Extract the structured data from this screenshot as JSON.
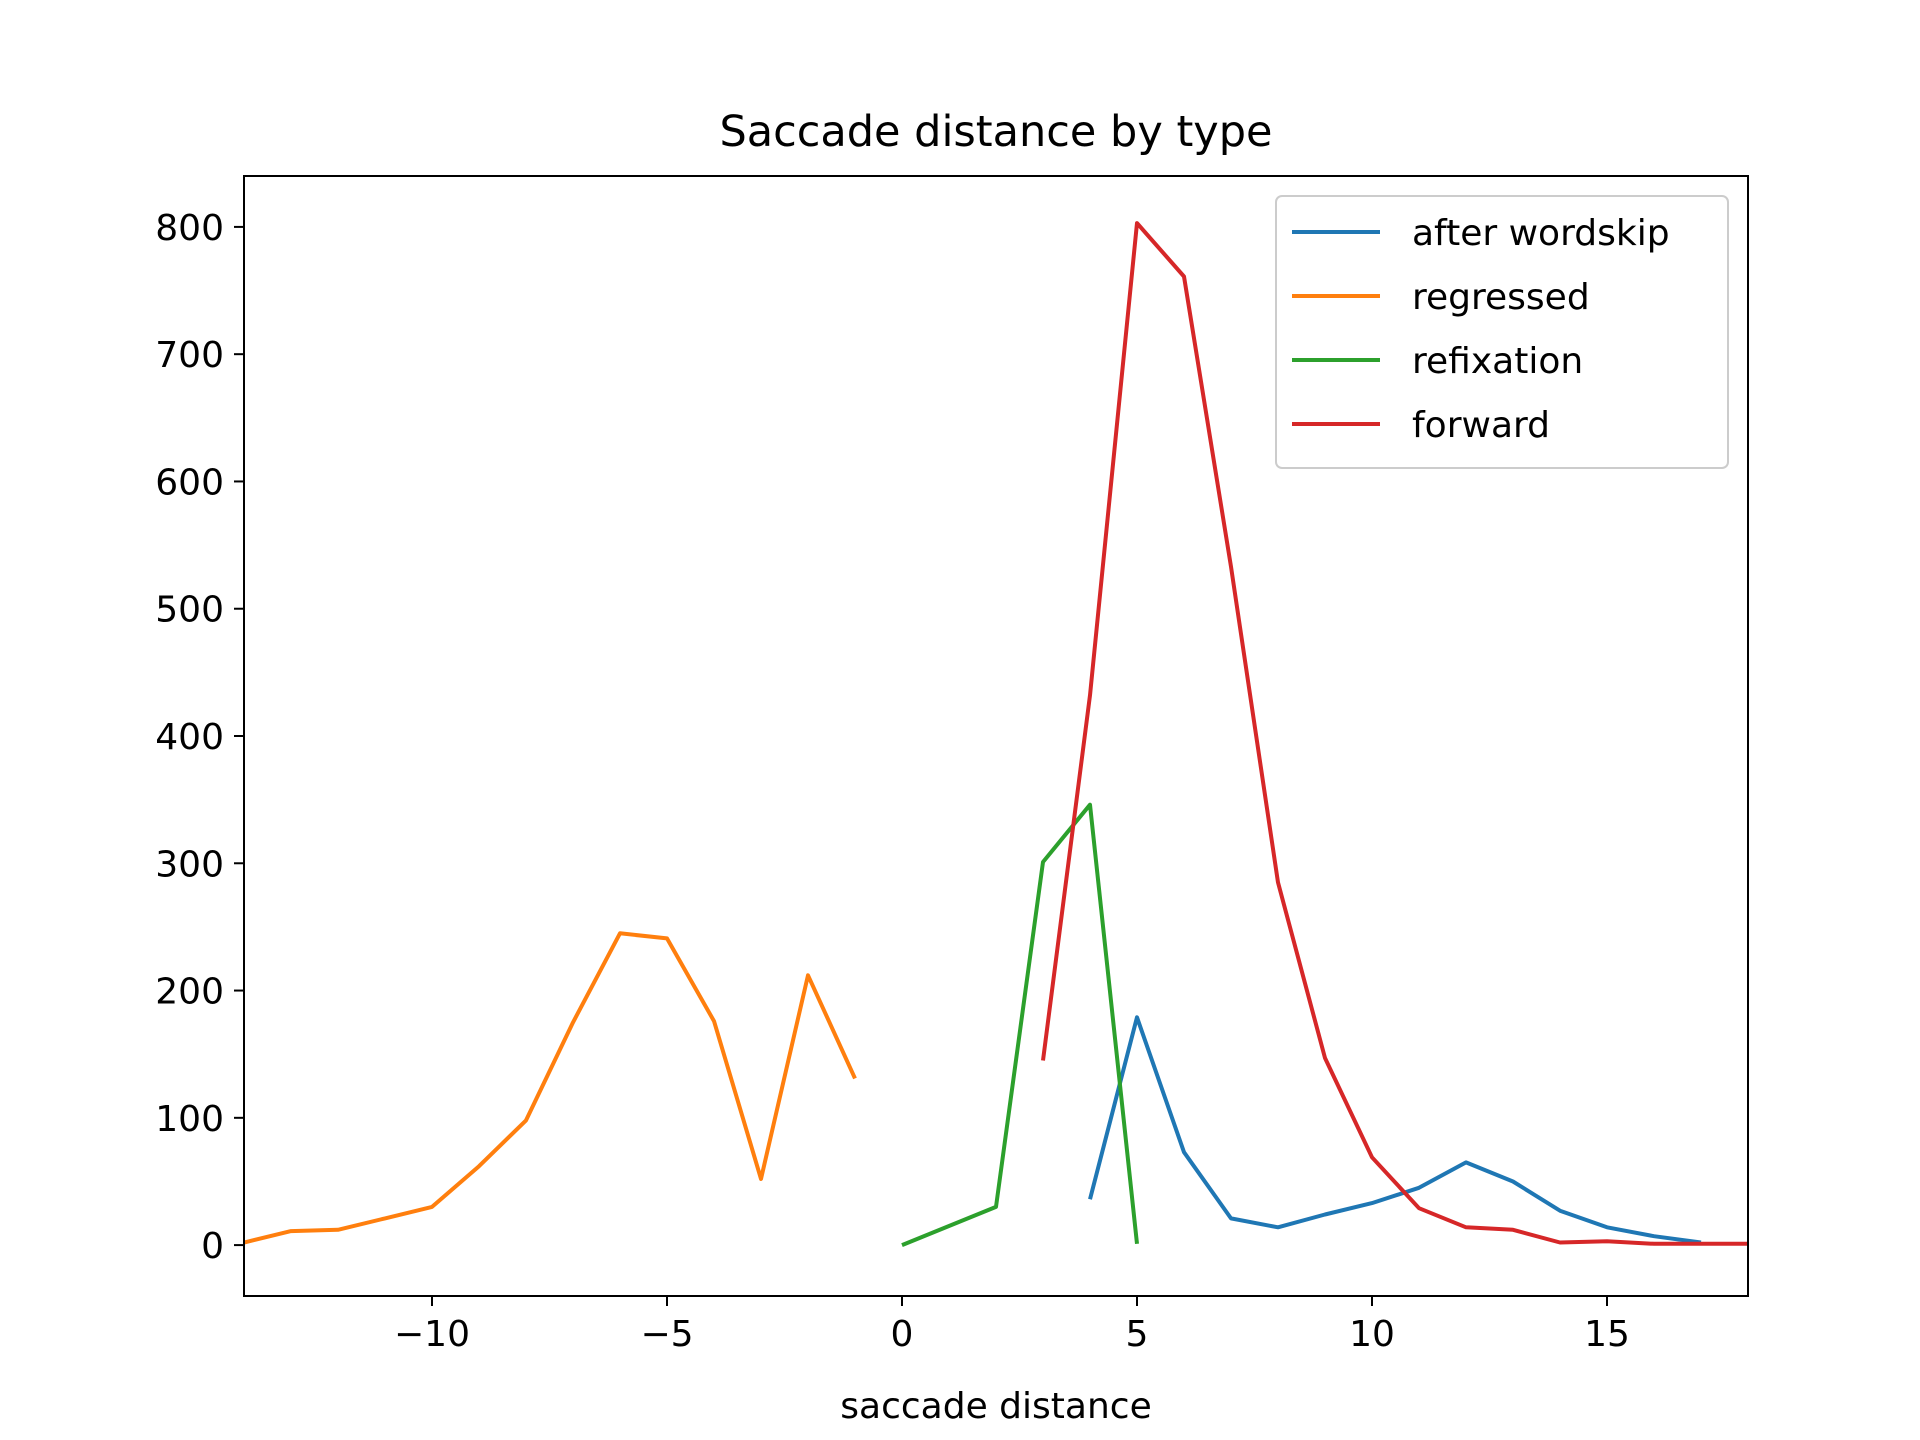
{
  "chart_data": {
    "type": "line",
    "title": "Saccade distance by type",
    "xlabel": "saccade distance",
    "ylabel": "",
    "xlim": [
      -14,
      18
    ],
    "ylim": [
      -40,
      840
    ],
    "xticks": [
      -10,
      -5,
      0,
      5,
      10,
      15
    ],
    "xtick_labels": [
      "−10",
      "−5",
      "0",
      "5",
      "10",
      "15"
    ],
    "yticks": [
      0,
      100,
      200,
      300,
      400,
      500,
      600,
      700,
      800
    ],
    "ytick_labels": [
      "0",
      "100",
      "200",
      "300",
      "400",
      "500",
      "600",
      "700",
      "800"
    ],
    "grid": false,
    "legend_position": "top-right",
    "series": [
      {
        "name": "after wordskip",
        "color": "#1f77b4",
        "x": [
          4,
          5,
          6,
          7,
          8,
          9,
          10,
          11,
          12,
          13,
          14,
          15,
          16,
          17
        ],
        "y": [
          36,
          179,
          73,
          21,
          14,
          24,
          33,
          45,
          65,
          50,
          27,
          14,
          7,
          2
        ]
      },
      {
        "name": "regressed",
        "color": "#ff7f0e",
        "x": [
          -14,
          -13,
          -12,
          -11,
          -10,
          -9,
          -8,
          -7,
          -6,
          -5,
          -4,
          -3,
          -2,
          -1
        ],
        "y": [
          2,
          11,
          12,
          21,
          30,
          62,
          98,
          175,
          245,
          241,
          176,
          52,
          212,
          131
        ]
      },
      {
        "name": "refixation",
        "color": "#2ca02c",
        "x": [
          0,
          1,
          2,
          3,
          4,
          5
        ],
        "y": [
          0,
          15,
          30,
          301,
          346,
          1
        ]
      },
      {
        "name": "forward",
        "color": "#d62728",
        "x": [
          3,
          4,
          5,
          6,
          7,
          8,
          9,
          10,
          11,
          12,
          13,
          14,
          15,
          16,
          17,
          18
        ],
        "y": [
          145,
          432,
          803,
          761,
          533,
          285,
          147,
          69,
          29,
          14,
          12,
          2,
          3,
          1,
          1,
          1
        ]
      }
    ]
  }
}
